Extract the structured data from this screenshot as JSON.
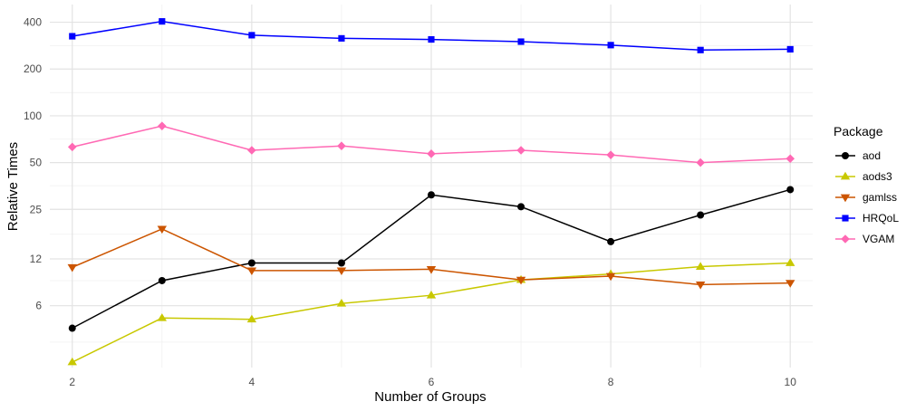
{
  "chart_data": {
    "type": "line",
    "xlabel": "Number of Groups",
    "ylabel": "Relative Times",
    "x_scale": "linear",
    "y_scale": "log",
    "xlim": [
      1.75,
      10.25
    ],
    "ylim": [
      2.4,
      520
    ],
    "x_ticks": [
      2,
      4,
      6,
      8,
      10
    ],
    "x_tick_labels": [
      "2",
      "4",
      "6",
      "8",
      "10"
    ],
    "y_ticks": [
      6,
      12,
      25,
      50,
      100,
      200,
      400
    ],
    "y_tick_labels": [
      "6",
      "12",
      "25",
      "50",
      "100",
      "200",
      "400"
    ],
    "y_minor_ticks": [
      3.5,
      8.7,
      17.3,
      35.5,
      70.7,
      141,
      283
    ],
    "grid": true,
    "legend": {
      "title": "Package",
      "position": "right"
    },
    "x": [
      2,
      3,
      4,
      5,
      6,
      7,
      8,
      9,
      10
    ],
    "series": [
      {
        "name": "aod",
        "color": "#000000",
        "marker": "circle",
        "values": [
          4.3,
          8.7,
          11.3,
          11.3,
          31.0,
          26.0,
          15.5,
          23.0,
          33.5
        ]
      },
      {
        "name": "aods3",
        "color": "#c8c800",
        "marker": "triangle-up",
        "values": [
          2.6,
          5.0,
          4.9,
          6.2,
          7.0,
          8.8,
          9.6,
          10.7,
          11.3
        ]
      },
      {
        "name": "gamlss",
        "color": "#cc5500",
        "marker": "triangle-down",
        "values": [
          10.6,
          18.7,
          10.1,
          10.1,
          10.3,
          8.8,
          9.3,
          8.2,
          8.4
        ]
      },
      {
        "name": "HRQoL",
        "color": "#0000ff",
        "marker": "square",
        "values": [
          325,
          405,
          330,
          315,
          310,
          300,
          285,
          265,
          268
        ]
      },
      {
        "name": "VGAM",
        "color": "#ff69b4",
        "marker": "diamond",
        "values": [
          63,
          86,
          60,
          64,
          57,
          60,
          56,
          50,
          53
        ]
      }
    ]
  }
}
